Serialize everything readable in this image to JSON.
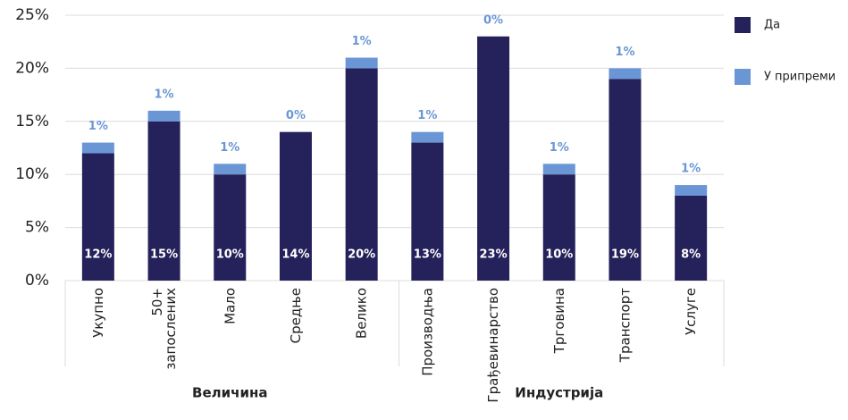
{
  "chart_data": {
    "type": "stacked_bar",
    "categories": [
      "Укупно",
      "50+\nзапослених",
      "Мало",
      "Средње",
      "Велико",
      "Производња",
      "Грађевинарство",
      "Трговина",
      "Транспорт",
      "Услуге"
    ],
    "groups": [
      "Величина",
      "Индустрија"
    ],
    "series": [
      {
        "name": "Да",
        "color": "#25215a",
        "values": [
          12,
          15,
          10,
          14,
          20,
          13,
          23,
          10,
          19,
          8
        ],
        "value_labels": [
          "12%",
          "15%",
          "10%",
          "14%",
          "20%",
          "13%",
          "23%",
          "10%",
          "19%",
          "8%"
        ]
      },
      {
        "name": "У припреми",
        "color": "#6b96d6",
        "values": [
          1,
          1,
          1,
          0,
          1,
          1,
          0,
          1,
          1,
          1
        ],
        "value_labels": [
          "1%",
          "1%",
          "1%",
          "0%",
          "1%",
          "1%",
          "0%",
          "1%",
          "1%",
          "1%"
        ]
      }
    ],
    "ylim": [
      0,
      25
    ],
    "yticks": [
      {
        "value": 0,
        "label": "0%"
      },
      {
        "value": 5,
        "label": "5%"
      },
      {
        "value": 10,
        "label": "10%"
      },
      {
        "value": 15,
        "label": "15%"
      },
      {
        "value": 20,
        "label": "20%"
      },
      {
        "value": 25,
        "label": "25%"
      }
    ],
    "grid": true
  }
}
